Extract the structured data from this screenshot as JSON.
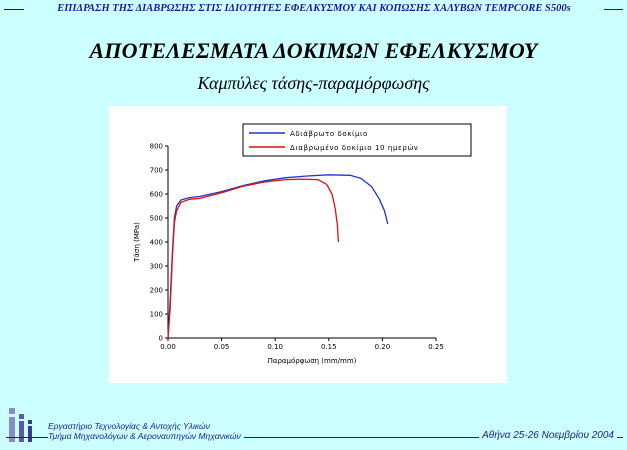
{
  "header": {
    "title": "ΕΠΙΔΡΑΣΗ ΤΗΣ ΔΙΑΒΡΩΣΗΣ ΣΤΙΣ ΙΔΙΟΤΗΤΕΣ ΕΦΕΛΚΥΣΜΟΥ ΚΑΙ ΚΟΠΩΣΗΣ ΧΑΛΥΒΩΝ TEMPCORE S500s"
  },
  "slide": {
    "title": "ΑΠΟΤΕΛΕΣΜΑΤΑ ΔΟΚΙΜΩΝ ΕΦΕΛΚΥΣΜΟΥ",
    "subtitle": "Καμπύλες τάσης-παραμόρφωσης"
  },
  "chart_data": {
    "type": "line",
    "xlabel": "Παραμόρφωση (mm/mm)",
    "ylabel": "Τάση (MPa)",
    "xlim": [
      0.0,
      0.25
    ],
    "ylim": [
      0,
      800
    ],
    "xticks": [
      "0.00",
      "0.05",
      "0.10",
      "0.15",
      "0.20",
      "0.25"
    ],
    "yticks": [
      "0",
      "100",
      "200",
      "300",
      "400",
      "500",
      "600",
      "700",
      "800"
    ],
    "grid": false,
    "legend_position": "top-right",
    "series": [
      {
        "name": "Αδιάβρωτο δοκίμιο",
        "color": "#2233cc",
        "x": [
          0.0,
          0.002,
          0.004,
          0.006,
          0.008,
          0.012,
          0.02,
          0.03,
          0.05,
          0.07,
          0.09,
          0.11,
          0.13,
          0.15,
          0.17,
          0.18,
          0.19,
          0.197,
          0.202,
          0.205
        ],
        "y": [
          0,
          150,
          350,
          500,
          550,
          575,
          585,
          590,
          610,
          635,
          655,
          668,
          675,
          680,
          678,
          665,
          630,
          580,
          530,
          475
        ]
      },
      {
        "name": "Διαβρωμένο δοκίμιο 10 ημερών",
        "color": "#dd1111",
        "x": [
          0.0,
          0.002,
          0.004,
          0.006,
          0.008,
          0.012,
          0.02,
          0.03,
          0.05,
          0.07,
          0.09,
          0.11,
          0.125,
          0.14,
          0.148,
          0.153,
          0.156,
          0.158,
          0.159
        ],
        "y": [
          0,
          120,
          330,
          480,
          530,
          565,
          578,
          582,
          605,
          632,
          650,
          660,
          662,
          660,
          640,
          600,
          540,
          470,
          400
        ]
      }
    ]
  },
  "footer": {
    "lab_line1": "Εργαστήριο Τεχνολογίας & Αντοχής Υλικών",
    "lab_line2": "Τμήμα Μηχανολόγων & Αεροναυπηγών Μηχανικών",
    "date": "Αθήνα 25-26 Νοεμβρίου 2004"
  }
}
